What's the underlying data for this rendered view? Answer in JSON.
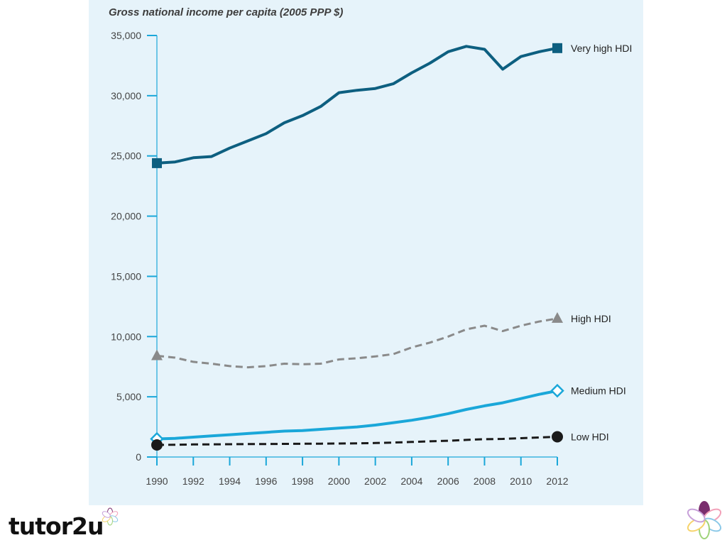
{
  "brand": {
    "wordmark": "tutor2u",
    "flower_colors": [
      "#7a2e6e",
      "#f2a1b9",
      "#8cc9e8",
      "#9fd37a",
      "#f6d36b",
      "#c7a0d9"
    ]
  },
  "chart_data": {
    "type": "line",
    "title": "Gross national income per capita (2005 PPP $)",
    "xlabel": "",
    "ylabel": "",
    "xlim": [
      1990,
      2012
    ],
    "ylim": [
      0,
      35000
    ],
    "x_ticks": [
      1990,
      1992,
      1994,
      1996,
      1998,
      2000,
      2002,
      2004,
      2006,
      2008,
      2010,
      2012
    ],
    "y_ticks": [
      0,
      5000,
      10000,
      15000,
      20000,
      25000,
      30000,
      35000
    ],
    "y_tick_labels": [
      "0",
      "5,000",
      "10,000",
      "15,000",
      "20,000",
      "25,000",
      "30,000",
      "35,000"
    ],
    "grid": false,
    "legend": "labels at line ends (right)",
    "x": [
      1990,
      1991,
      1992,
      1993,
      1994,
      1995,
      1996,
      1997,
      1998,
      1999,
      2000,
      2001,
      2002,
      2003,
      2004,
      2005,
      2006,
      2007,
      2008,
      2009,
      2010,
      2011,
      2012
    ],
    "series": [
      {
        "name": "Very high HDI",
        "color": "#0d5f80",
        "dash": "solid",
        "marker": "filled-square",
        "values": [
          24400,
          24500,
          24850,
          24950,
          25650,
          26250,
          26850,
          27750,
          28350,
          29100,
          30250,
          30450,
          30600,
          31000,
          31900,
          32700,
          33650,
          34100,
          33850,
          32200,
          33250,
          33650,
          33950
        ]
      },
      {
        "name": "High HDI",
        "color": "#8a8a8a",
        "dash": "dashed",
        "marker": "filled-triangle",
        "values": [
          8400,
          8250,
          7900,
          7750,
          7550,
          7450,
          7550,
          7750,
          7700,
          7750,
          8100,
          8200,
          8350,
          8550,
          9100,
          9500,
          10000,
          10600,
          10900,
          10450,
          10900,
          11250,
          11500
        ]
      },
      {
        "name": "Medium HDI",
        "color": "#1aa7d9",
        "dash": "solid",
        "marker": "hollow-diamond",
        "values": [
          1500,
          1550,
          1650,
          1750,
          1850,
          1950,
          2050,
          2150,
          2200,
          2300,
          2400,
          2500,
          2650,
          2850,
          3050,
          3300,
          3600,
          3950,
          4250,
          4500,
          4850,
          5200,
          5500
        ]
      },
      {
        "name": "Low HDI",
        "color": "#1a1a1a",
        "dash": "dashed",
        "marker": "filled-circle",
        "values": [
          1000,
          1020,
          1040,
          1050,
          1060,
          1070,
          1080,
          1090,
          1100,
          1110,
          1120,
          1140,
          1160,
          1200,
          1250,
          1300,
          1350,
          1420,
          1480,
          1500,
          1560,
          1620,
          1680
        ]
      }
    ]
  }
}
